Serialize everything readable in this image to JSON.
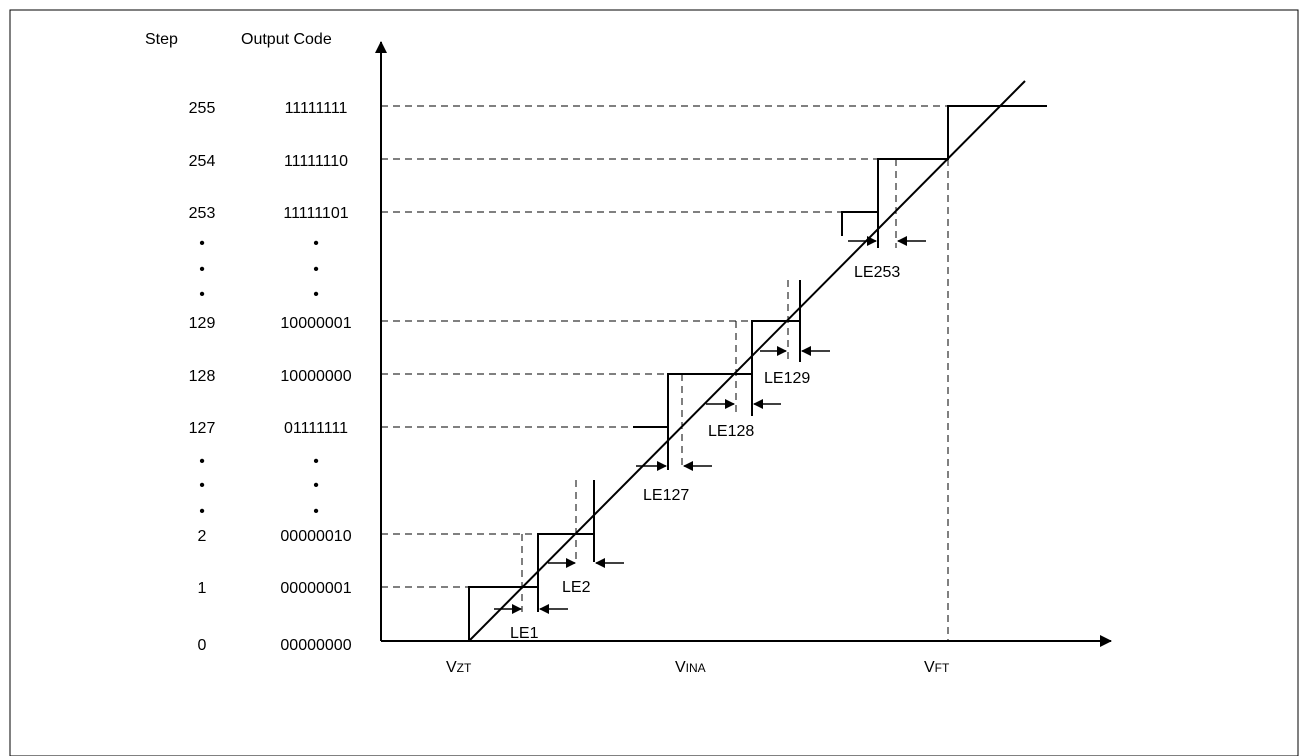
{
  "headers": {
    "step": "Step",
    "code": "Output Code"
  },
  "rows": [
    {
      "step": "255",
      "code": "11111111"
    },
    {
      "step": "254",
      "code": "11111110"
    },
    {
      "step": "253",
      "code": "11111101"
    },
    {
      "step": "129",
      "code": "10000001"
    },
    {
      "step": "128",
      "code": "10000000"
    },
    {
      "step": "127",
      "code": "01111111"
    },
    {
      "step": "2",
      "code": "00000010"
    },
    {
      "step": "1",
      "code": "00000001"
    },
    {
      "step": "0",
      "code": "00000000"
    }
  ],
  "ellipsis": "•",
  "x_labels": {
    "vzt": {
      "main": "V",
      "sub": "ZT"
    },
    "vina": {
      "main": "V",
      "sub": "INA"
    },
    "vft": {
      "main": "V",
      "sub": "FT"
    }
  },
  "le_labels": [
    "LE1",
    "LE2",
    "LE127",
    "LE128",
    "LE129",
    "LE253"
  ]
}
